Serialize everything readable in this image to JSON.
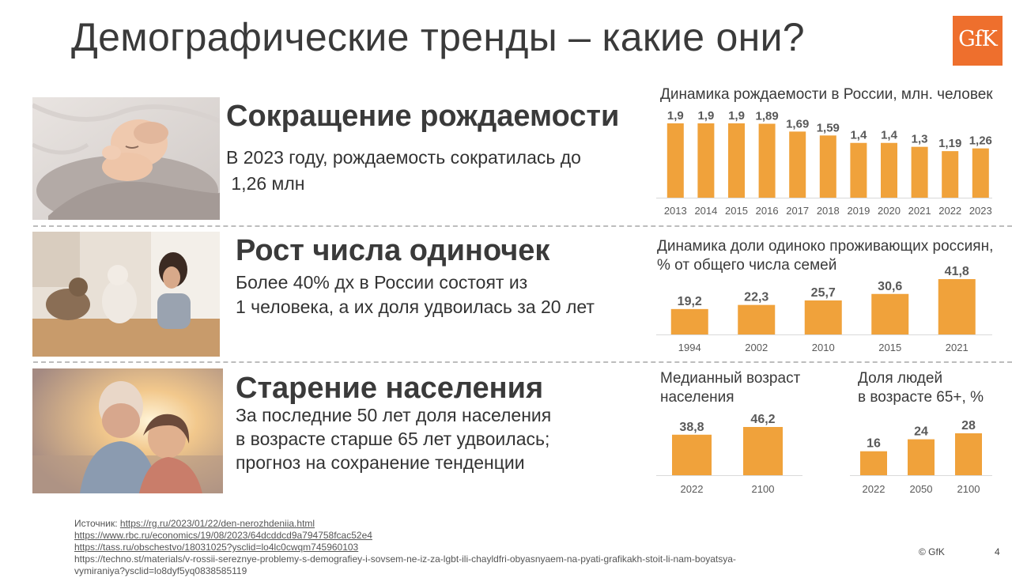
{
  "title": "Демографические тренды – какие они?",
  "logo_text": "GfK",
  "accent_color": "#f0a23b",
  "brand_color": "#ee6f2d",
  "sections": [
    {
      "title": "Сокращение рождаемости",
      "text_lines": [
        "В 2023 году, рождаемость сократилась до",
        " 1,26 млн"
      ]
    },
    {
      "title": "Рост числа одиночек",
      "text_lines": [
        "Более 40% дх в России состоят из",
        "1 человека, а их доля удвоилась за 20 лет"
      ]
    },
    {
      "title": "Старение населения",
      "text_lines": [
        "За последние 50 лет доля населения",
        "в возрасте старше 65 лет удвоилась;",
        "прогноз на сохранение тенденции"
      ]
    }
  ],
  "chart_data": [
    {
      "type": "bar",
      "title": "Динамика рождаемости в России, млн. человек",
      "categories": [
        "2013",
        "2014",
        "2015",
        "2016",
        "2017",
        "2018",
        "2019",
        "2020",
        "2021",
        "2022",
        "2023"
      ],
      "values": [
        1.9,
        1.9,
        1.9,
        1.89,
        1.69,
        1.59,
        1.4,
        1.4,
        1.3,
        1.19,
        1.26
      ],
      "labels": [
        "1,9",
        "1,9",
        "1,9",
        "1,89",
        "1,69",
        "1,59",
        "1,4",
        "1,4",
        "1,3",
        "1,19",
        "1,26"
      ],
      "ylim": [
        0,
        1.9
      ]
    },
    {
      "type": "bar",
      "title_lines": [
        "Динамика доли одиноко проживающих россиян,",
        "% от общего числа семей"
      ],
      "categories": [
        "1994",
        "2002",
        "2010",
        "2015",
        "2021"
      ],
      "values": [
        19.2,
        22.3,
        25.7,
        30.6,
        41.8
      ],
      "labels": [
        "19,2",
        "22,3",
        "25,7",
        "30,6",
        "41,8"
      ],
      "ylim": [
        0,
        41.8
      ]
    },
    {
      "type": "bar",
      "title_lines": [
        "Медианный возраст",
        "населения"
      ],
      "categories": [
        "2022",
        "2100"
      ],
      "values": [
        38.8,
        46.2
      ],
      "labels": [
        "38,8",
        "46,2"
      ],
      "ylim": [
        0,
        46.2
      ]
    },
    {
      "type": "bar",
      "title_lines": [
        "Доля людей",
        "в возрасте 65+, %"
      ],
      "categories": [
        "2022",
        "2050",
        "2100"
      ],
      "values": [
        16,
        24,
        28
      ],
      "labels": [
        "16",
        "24",
        "28"
      ],
      "ylim": [
        0,
        28
      ]
    }
  ],
  "sources": {
    "label": "Источник:",
    "links": [
      "https://rg.ru/2023/01/22/den-nerozhdeniia.html",
      "https://www.rbc.ru/economics/19/08/2023/64dcddcd9a794758fcac52e4",
      "https://tass.ru/obschestvo/18031025?ysclid=lo4lc0cwqm745960103"
    ],
    "plain_lines": [
      "https://techno.st/materials/v-rossii-sereznye-problemy-s-demografiey-i-sovsem-ne-iz-za-lgbt-ili-chayldfri-obyasnyaem-na-pyati-grafikakh-stoit-li-nam-boyatsya-",
      "vymiraniya?ysclid=lo8dyf5yq0838585119"
    ]
  },
  "footer": {
    "copyright": "© GfK",
    "page_number": "4"
  }
}
